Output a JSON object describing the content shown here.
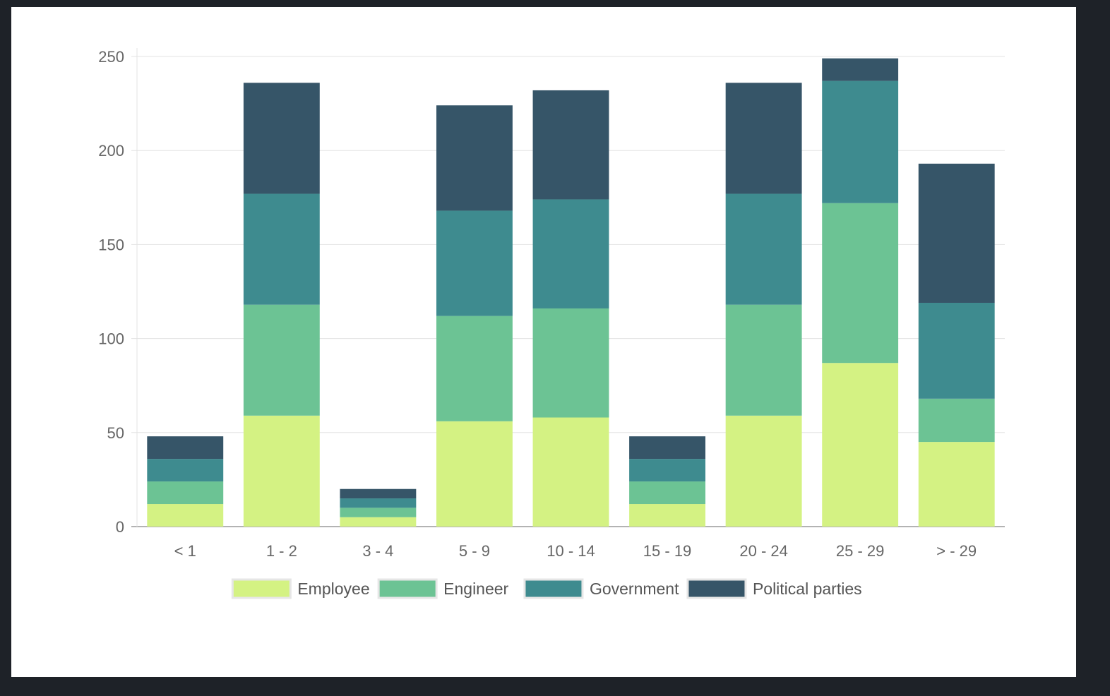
{
  "chart_data": {
    "type": "bar",
    "stacked": true,
    "title": "",
    "xlabel": "",
    "ylabel": "",
    "ylim": [
      0,
      250
    ],
    "yticks": [
      0,
      50,
      100,
      150,
      200,
      250
    ],
    "grid": true,
    "legend_position": "bottom",
    "categories": [
      "<  1",
      "1 - 2",
      "3 - 4",
      "5 - 9",
      "10 - 14",
      "15 - 19",
      "20 - 24",
      "25 - 29",
      "> - 29"
    ],
    "series": [
      {
        "name": "Employee",
        "color": "#d4f283",
        "values": [
          12,
          59,
          5,
          56,
          58,
          12,
          59,
          87,
          45
        ]
      },
      {
        "name": "Engineer",
        "color": "#6cc394",
        "values": [
          12,
          59,
          5,
          56,
          58,
          12,
          59,
          85,
          23
        ]
      },
      {
        "name": "Government",
        "color": "#3e8b8f",
        "values": [
          12,
          59,
          5,
          56,
          58,
          12,
          59,
          65,
          51
        ]
      },
      {
        "name": "Political parties",
        "color": "#365568",
        "values": [
          12,
          59,
          5,
          56,
          58,
          12,
          59,
          12,
          74
        ]
      }
    ]
  }
}
